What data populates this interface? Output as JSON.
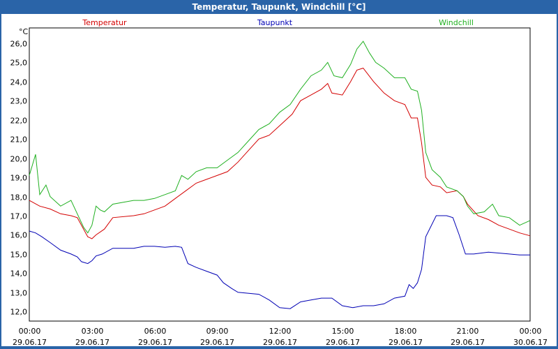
{
  "window": {
    "title": "Temperatur, Taupunkt, Windchill [°C]"
  },
  "colors": {
    "titlebar": "#2a64a8",
    "temperatur": "#d40000",
    "taupunkt": "#0000b4",
    "windchill": "#20b020"
  },
  "chart_data": {
    "type": "line",
    "title": "Temperatur, Taupunkt, Windchill [°C]",
    "ylabel": "°C",
    "xlabel": "",
    "ylim": [
      11.5,
      26.8
    ],
    "xlim": [
      0,
      24
    ],
    "grid": true,
    "legend": "top",
    "yticks": [
      12.0,
      13.0,
      14.0,
      15.0,
      16.0,
      17.0,
      18.0,
      19.0,
      20.0,
      21.0,
      22.0,
      23.0,
      24.0,
      25.0,
      26.0
    ],
    "ytick_labels": [
      "12,0",
      "13,0",
      "14,0",
      "15,0",
      "16,0",
      "17,0",
      "18,0",
      "19,0",
      "20,0",
      "21,0",
      "22,0",
      "23,0",
      "24,0",
      "25,0",
      "26,0"
    ],
    "xticks": [
      0,
      3,
      6,
      9,
      12,
      15,
      18,
      21,
      24
    ],
    "xtick_time": [
      "00:00",
      "03:00",
      "06:00",
      "09:00",
      "12:00",
      "15:00",
      "18:00",
      "21:00",
      "00:00"
    ],
    "xtick_date": [
      "29.06.17",
      "29.06.17",
      "29.06.17",
      "29.06.17",
      "29.06.17",
      "29.06.17",
      "29.06.17",
      "29.06.17",
      "30.06.17"
    ],
    "series": [
      {
        "name": "Temperatur",
        "color": "#d40000",
        "points": [
          [
            0,
            17.8
          ],
          [
            0.5,
            17.5
          ],
          [
            1,
            17.35
          ],
          [
            1.5,
            17.1
          ],
          [
            2,
            17.0
          ],
          [
            2.3,
            16.9
          ],
          [
            2.6,
            16.3
          ],
          [
            2.8,
            15.9
          ],
          [
            3.0,
            15.8
          ],
          [
            3.2,
            16.0
          ],
          [
            3.6,
            16.3
          ],
          [
            4,
            16.9
          ],
          [
            5,
            17.0
          ],
          [
            5.5,
            17.1
          ],
          [
            6,
            17.3
          ],
          [
            6.5,
            17.5
          ],
          [
            7,
            17.9
          ],
          [
            7.5,
            18.3
          ],
          [
            8,
            18.7
          ],
          [
            8.5,
            18.9
          ],
          [
            9,
            19.1
          ],
          [
            9.5,
            19.3
          ],
          [
            10,
            19.8
          ],
          [
            10.5,
            20.4
          ],
          [
            11,
            21.0
          ],
          [
            11.5,
            21.2
          ],
          [
            12,
            21.7
          ],
          [
            12.3,
            22.0
          ],
          [
            12.6,
            22.3
          ],
          [
            13,
            23.0
          ],
          [
            13.5,
            23.3
          ],
          [
            14,
            23.6
          ],
          [
            14.3,
            23.9
          ],
          [
            14.5,
            23.4
          ],
          [
            15,
            23.3
          ],
          [
            15.4,
            24.0
          ],
          [
            15.7,
            24.6
          ],
          [
            16,
            24.7
          ],
          [
            16.5,
            24.0
          ],
          [
            17,
            23.4
          ],
          [
            17.5,
            23.0
          ],
          [
            18,
            22.8
          ],
          [
            18.3,
            22.1
          ],
          [
            18.6,
            22.1
          ],
          [
            18.8,
            20.8
          ],
          [
            19.0,
            19.0
          ],
          [
            19.3,
            18.6
          ],
          [
            19.7,
            18.5
          ],
          [
            20,
            18.2
          ],
          [
            20.5,
            18.3
          ],
          [
            20.8,
            18.0
          ],
          [
            21,
            17.6
          ],
          [
            21.5,
            17.0
          ],
          [
            22,
            16.8
          ],
          [
            22.5,
            16.5
          ],
          [
            23,
            16.3
          ],
          [
            23.5,
            16.1
          ],
          [
            24,
            15.95
          ]
        ]
      },
      {
        "name": "Taupunkt",
        "color": "#0000b4",
        "points": [
          [
            0,
            16.2
          ],
          [
            0.3,
            16.1
          ],
          [
            0.6,
            15.9
          ],
          [
            1,
            15.6
          ],
          [
            1.5,
            15.2
          ],
          [
            2,
            15.0
          ],
          [
            2.3,
            14.85
          ],
          [
            2.5,
            14.6
          ],
          [
            2.8,
            14.5
          ],
          [
            3.0,
            14.65
          ],
          [
            3.2,
            14.9
          ],
          [
            3.5,
            15.0
          ],
          [
            4,
            15.3
          ],
          [
            5,
            15.3
          ],
          [
            5.5,
            15.4
          ],
          [
            6,
            15.4
          ],
          [
            6.5,
            15.35
          ],
          [
            7,
            15.4
          ],
          [
            7.3,
            15.35
          ],
          [
            7.6,
            14.5
          ],
          [
            8,
            14.3
          ],
          [
            8.5,
            14.1
          ],
          [
            9,
            13.9
          ],
          [
            9.3,
            13.5
          ],
          [
            9.7,
            13.2
          ],
          [
            10,
            13.0
          ],
          [
            11,
            12.9
          ],
          [
            11.5,
            12.6
          ],
          [
            12,
            12.2
          ],
          [
            12.5,
            12.15
          ],
          [
            13,
            12.5
          ],
          [
            13.5,
            12.6
          ],
          [
            14,
            12.7
          ],
          [
            14.5,
            12.7
          ],
          [
            15,
            12.3
          ],
          [
            15.5,
            12.2
          ],
          [
            16,
            12.3
          ],
          [
            16.5,
            12.3
          ],
          [
            17,
            12.4
          ],
          [
            17.5,
            12.7
          ],
          [
            18,
            12.8
          ],
          [
            18.2,
            13.4
          ],
          [
            18.4,
            13.2
          ],
          [
            18.6,
            13.5
          ],
          [
            18.8,
            14.2
          ],
          [
            19,
            15.9
          ],
          [
            19.5,
            17.0
          ],
          [
            20,
            17.0
          ],
          [
            20.3,
            16.9
          ],
          [
            20.6,
            16.0
          ],
          [
            20.9,
            15.0
          ],
          [
            21.3,
            15.0
          ],
          [
            22,
            15.1
          ],
          [
            23,
            15.0
          ],
          [
            23.5,
            14.95
          ],
          [
            24,
            14.95
          ]
        ]
      },
      {
        "name": "Windchill",
        "color": "#20b020",
        "points": [
          [
            0,
            19.1
          ],
          [
            0.3,
            20.2
          ],
          [
            0.5,
            18.1
          ],
          [
            0.8,
            18.6
          ],
          [
            1,
            18.0
          ],
          [
            1.5,
            17.5
          ],
          [
            2,
            17.8
          ],
          [
            2.3,
            17.1
          ],
          [
            2.6,
            16.4
          ],
          [
            2.8,
            16.1
          ],
          [
            3.0,
            16.5
          ],
          [
            3.2,
            17.5
          ],
          [
            3.4,
            17.3
          ],
          [
            3.6,
            17.2
          ],
          [
            4,
            17.6
          ],
          [
            5,
            17.8
          ],
          [
            5.5,
            17.8
          ],
          [
            6,
            17.9
          ],
          [
            6.5,
            18.1
          ],
          [
            7,
            18.3
          ],
          [
            7.3,
            19.1
          ],
          [
            7.6,
            18.9
          ],
          [
            8,
            19.3
          ],
          [
            8.5,
            19.5
          ],
          [
            9,
            19.5
          ],
          [
            9.5,
            19.9
          ],
          [
            10,
            20.3
          ],
          [
            10.5,
            20.9
          ],
          [
            11,
            21.5
          ],
          [
            11.5,
            21.8
          ],
          [
            12,
            22.4
          ],
          [
            12.5,
            22.8
          ],
          [
            13,
            23.6
          ],
          [
            13.5,
            24.3
          ],
          [
            14,
            24.6
          ],
          [
            14.3,
            25.0
          ],
          [
            14.6,
            24.3
          ],
          [
            15,
            24.2
          ],
          [
            15.4,
            24.9
          ],
          [
            15.7,
            25.7
          ],
          [
            16,
            26.1
          ],
          [
            16.3,
            25.5
          ],
          [
            16.6,
            25.0
          ],
          [
            17,
            24.7
          ],
          [
            17.5,
            24.2
          ],
          [
            18,
            24.2
          ],
          [
            18.3,
            23.6
          ],
          [
            18.6,
            23.5
          ],
          [
            18.8,
            22.5
          ],
          [
            19.0,
            20.3
          ],
          [
            19.3,
            19.4
          ],
          [
            19.7,
            19.0
          ],
          [
            20,
            18.5
          ],
          [
            20.5,
            18.3
          ],
          [
            20.8,
            18.0
          ],
          [
            21,
            17.5
          ],
          [
            21.3,
            17.1
          ],
          [
            21.8,
            17.2
          ],
          [
            22.2,
            17.6
          ],
          [
            22.5,
            17.0
          ],
          [
            23,
            16.9
          ],
          [
            23.5,
            16.5
          ],
          [
            24,
            16.75
          ]
        ]
      }
    ]
  }
}
